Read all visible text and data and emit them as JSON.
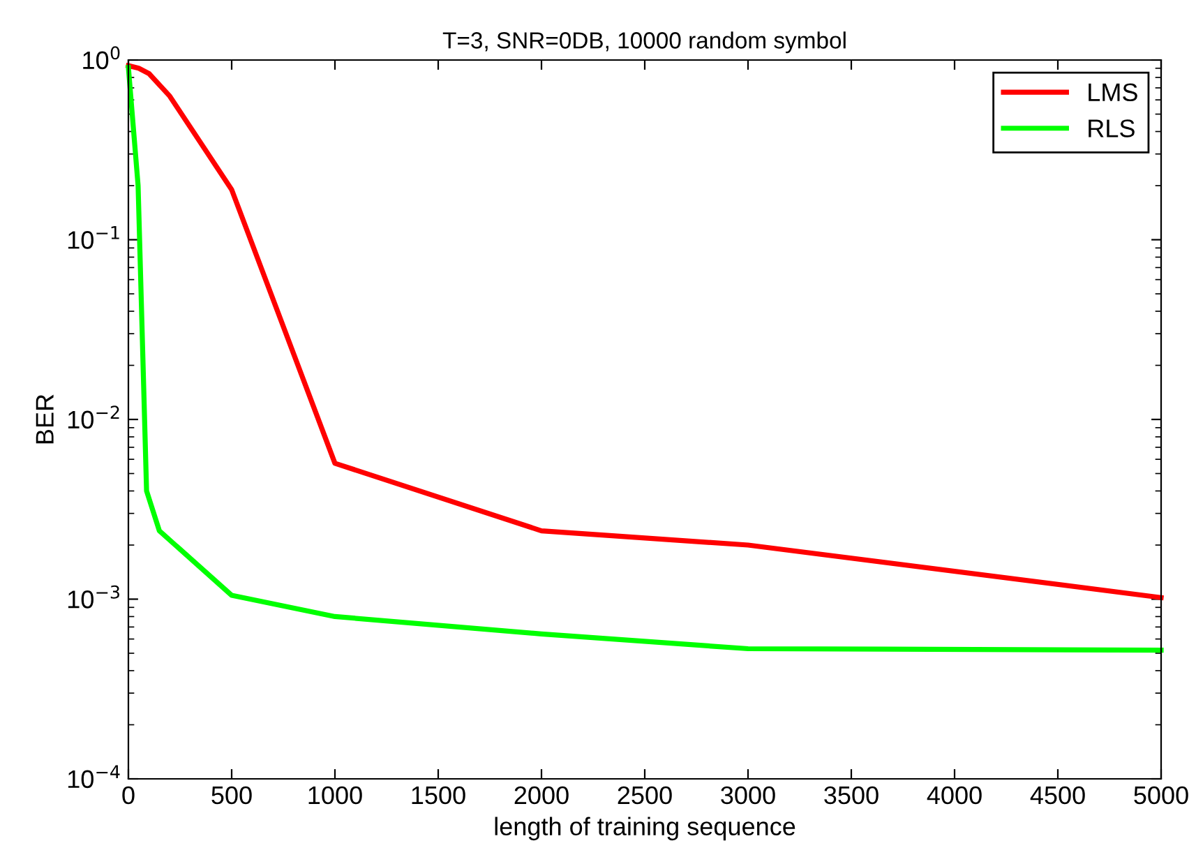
{
  "chart_data": {
    "type": "line",
    "title": "T=3, SNR=0DB, 10000 random symbol",
    "xlabel": "length of training sequence",
    "ylabel": "BER",
    "log": "y",
    "xlim": [
      0,
      5000
    ],
    "xticks": [
      0,
      500,
      1000,
      1500,
      2000,
      2500,
      3000,
      3500,
      4000,
      4500,
      5000
    ],
    "ylim": [
      0.0001,
      1
    ],
    "yticks": [
      {
        "value": 0.0001,
        "label": "10$^{−4}$"
      },
      {
        "value": 0.001,
        "label": "10$^{−3}$"
      },
      {
        "value": 0.01,
        "label": "10$^{−2}$"
      },
      {
        "value": 0.1,
        "label": "10$^{−1}$"
      },
      {
        "value": 1,
        "label": "10$^{0}$"
      }
    ],
    "grid": false,
    "legend": "top right",
    "marker": "none",
    "line_style": "solid",
    "series": [
      {
        "name": "LMS",
        "color": "#ff0000",
        "x": [
          0,
          50,
          100,
          200,
          500,
          1000,
          2000,
          3000,
          5000
        ],
        "values": [
          0.93,
          0.9,
          0.84,
          0.63,
          0.19,
          0.0057,
          0.0024,
          0.002,
          0.00102
        ]
      },
      {
        "name": "RLS",
        "color": "#00ff00",
        "x": [
          0,
          47,
          88,
          150,
          500,
          1000,
          2000,
          3000,
          5000
        ],
        "values": [
          0.91,
          0.2,
          0.004,
          0.0024,
          0.00105,
          0.0008,
          0.00064,
          0.00053,
          0.00052
        ]
      }
    ]
  }
}
